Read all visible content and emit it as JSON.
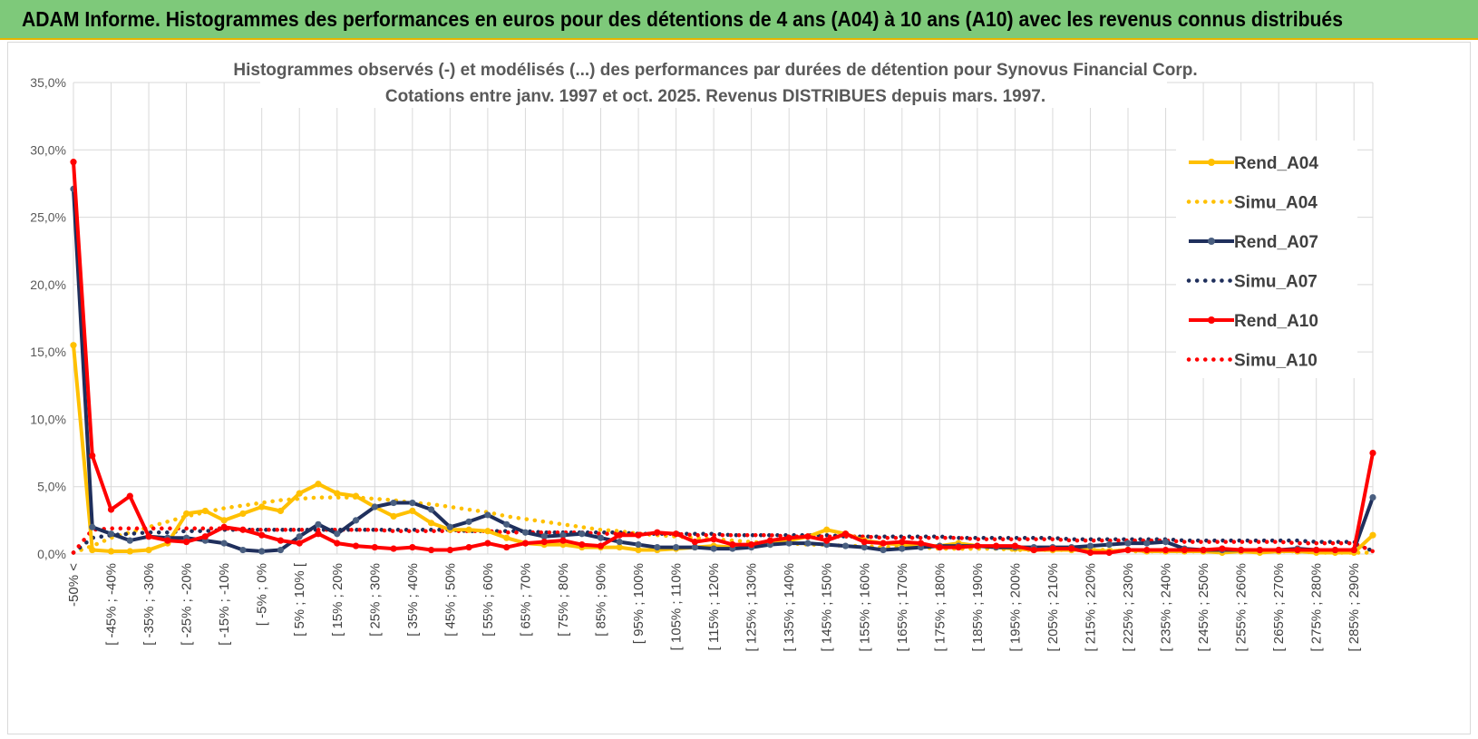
{
  "banner": {
    "title": "ADAM Informe. Histogrammes des performances en euros pour des détentions de 4 ans (A04) à 10 ans (A10) avec les revenus connus distribués"
  },
  "colors": {
    "banner_bg": "#7ec97a",
    "banner_border": "#e8b400",
    "A04": "#ffc000",
    "A07": "#1f2f5c",
    "A07_marker": "#4a5f80",
    "A10": "#ff0000",
    "grid": "#d9d9d9"
  },
  "chart_data": {
    "type": "line",
    "title_lines": [
      "Histogrammes observés (-) et modélisés (...) des performances par durées de détention pour Synovus Financial Corp.",
      "Cotations entre janv. 1997 et oct. 2025. Revenus DISTRIBUES depuis mars. 1997."
    ],
    "grid": true,
    "legend_position": "right",
    "y_ticks": [
      "0,0%",
      "5,0%",
      "10,0%",
      "15,0%",
      "20,0%",
      "25,0%",
      "30,0%",
      "35,0%"
    ],
    "ylim": [
      0,
      35
    ],
    "x_labels": [
      "-50% <",
      "[ -45% ; -40%",
      "[ -35% ; -30%",
      "[ -25% ; -20%",
      "[ -15% ; -10%",
      "[ -5% ; 0%",
      "[ 5% ; 10% [",
      "[ 15% ; 20%",
      "[ 25% ; 30%",
      "[ 35% ; 40%",
      "[ 45% ; 50%",
      "[ 55% ; 60%",
      "[ 65% ; 70%",
      "[ 75% ; 80%",
      "[ 85% ; 90%",
      "[ 95% ; 100%",
      "[ 105% ; 110%",
      "[ 115% ; 120%",
      "[ 125% ; 130%",
      "[ 135% ; 140%",
      "[ 145% ; 150%",
      "[ 155% ; 160%",
      "[ 165% ; 170%",
      "[ 175% ; 180%",
      "[ 185% ; 190%",
      "[ 195% ; 200%",
      "[ 205% ; 210%",
      "[ 215% ; 220%",
      "[ 225% ; 230%",
      "[ 235% ; 240%",
      "[ 245% ; 250%",
      "[ 255% ; 260%",
      "[ 265% ; 270%",
      "[ 275% ; 280%",
      "[ 285% ; 290%"
    ],
    "series": [
      {
        "name": "Rend_A04",
        "style": "solid",
        "color": "#ffc000",
        "values": [
          15.5,
          0.3,
          0.2,
          0.2,
          0.3,
          0.8,
          3.0,
          3.2,
          2.5,
          3.0,
          3.5,
          3.2,
          4.5,
          5.2,
          4.5,
          4.3,
          3.5,
          2.8,
          3.2,
          2.3,
          1.8,
          1.8,
          1.7,
          1.2,
          0.8,
          0.7,
          0.7,
          0.5,
          0.5,
          0.5,
          0.3,
          0.3,
          0.4,
          0.5,
          0.6,
          0.5,
          0.6,
          0.7,
          1.0,
          1.3,
          1.8,
          1.5,
          1.0,
          0.8,
          0.7,
          0.6,
          0.6,
          0.8,
          0.6,
          0.5,
          0.4,
          0.3,
          0.3,
          0.3,
          0.3,
          0.2,
          0.3,
          0.2,
          0.2,
          0.2,
          0.2,
          0.1,
          0.2,
          0.1,
          0.2,
          0.2,
          0.1,
          0.1,
          0.1,
          1.4
        ]
      },
      {
        "name": "Simu_A04",
        "style": "dotted",
        "color": "#ffc000",
        "values": [
          0.1,
          0.6,
          1.2,
          1.6,
          2.0,
          2.4,
          2.8,
          3.1,
          3.4,
          3.6,
          3.8,
          4.0,
          4.1,
          4.2,
          4.2,
          4.2,
          4.1,
          4.0,
          3.8,
          3.7,
          3.5,
          3.3,
          3.1,
          2.8,
          2.6,
          2.4,
          2.2,
          2.0,
          1.8,
          1.7,
          1.5,
          1.4,
          1.3,
          1.2,
          1.1,
          1.0,
          0.9,
          0.8,
          0.8,
          0.7,
          0.7,
          0.6,
          0.6,
          0.5,
          0.5,
          0.5,
          0.4,
          0.4,
          0.4,
          0.4,
          0.3,
          0.3,
          0.3,
          0.3,
          0.3,
          0.3,
          0.2,
          0.2,
          0.2,
          0.2,
          0.2,
          0.2,
          0.2,
          0.2,
          0.2,
          0.2,
          0.1,
          0.1,
          0.1,
          0.1
        ]
      },
      {
        "name": "Rend_A07",
        "style": "solid",
        "color": "#1f2f5c",
        "values": [
          27.1,
          2.0,
          1.5,
          1.0,
          1.3,
          1.2,
          1.2,
          1.0,
          0.8,
          0.3,
          0.2,
          0.3,
          1.3,
          2.2,
          1.5,
          2.5,
          3.5,
          3.8,
          3.8,
          3.3,
          2.0,
          2.4,
          2.9,
          2.2,
          1.6,
          1.3,
          1.4,
          1.5,
          1.2,
          0.9,
          0.7,
          0.5,
          0.5,
          0.5,
          0.4,
          0.4,
          0.5,
          0.7,
          0.8,
          0.8,
          0.7,
          0.6,
          0.5,
          0.3,
          0.4,
          0.5,
          0.6,
          0.6,
          0.6,
          0.5,
          0.5,
          0.5,
          0.5,
          0.5,
          0.6,
          0.7,
          0.8,
          0.8,
          0.9,
          0.4,
          0.3,
          0.3,
          0.3,
          0.3,
          0.3,
          0.4,
          0.3,
          0.3,
          0.3,
          4.2
        ]
      },
      {
        "name": "Simu_A07",
        "style": "dotted",
        "color": "#1f2f5c",
        "values": [
          0.1,
          1.2,
          1.4,
          1.5,
          1.6,
          1.6,
          1.7,
          1.7,
          1.8,
          1.8,
          1.8,
          1.8,
          1.8,
          1.8,
          1.8,
          1.8,
          1.8,
          1.8,
          1.8,
          1.8,
          1.8,
          1.7,
          1.7,
          1.7,
          1.7,
          1.6,
          1.6,
          1.6,
          1.6,
          1.6,
          1.5,
          1.5,
          1.5,
          1.5,
          1.5,
          1.4,
          1.4,
          1.4,
          1.4,
          1.4,
          1.4,
          1.3,
          1.3,
          1.3,
          1.3,
          1.3,
          1.3,
          1.2,
          1.2,
          1.2,
          1.2,
          1.2,
          1.2,
          1.1,
          1.1,
          1.1,
          1.1,
          1.1,
          1.1,
          1.0,
          1.0,
          1.0,
          1.0,
          1.0,
          1.0,
          1.0,
          0.9,
          0.9,
          0.9,
          0.2
        ]
      },
      {
        "name": "Rend_A10",
        "style": "solid",
        "color": "#ff0000",
        "values": [
          29.1,
          7.3,
          3.3,
          4.3,
          1.3,
          1.0,
          0.9,
          1.3,
          2.0,
          1.8,
          1.4,
          1.0,
          0.8,
          1.5,
          0.8,
          0.6,
          0.5,
          0.4,
          0.5,
          0.3,
          0.3,
          0.5,
          0.8,
          0.5,
          0.8,
          0.9,
          1.0,
          0.7,
          0.6,
          1.4,
          1.4,
          1.6,
          1.5,
          0.9,
          1.1,
          0.7,
          0.7,
          1.0,
          1.2,
          1.3,
          1.0,
          1.5,
          0.9,
          0.8,
          0.9,
          0.8,
          0.5,
          0.5,
          0.6,
          0.6,
          0.6,
          0.3,
          0.4,
          0.4,
          0.1,
          0.1,
          0.3,
          0.3,
          0.3,
          0.3,
          0.3,
          0.4,
          0.3,
          0.3,
          0.3,
          0.3,
          0.3,
          0.3,
          0.3,
          7.5
        ]
      },
      {
        "name": "Simu_A10",
        "style": "dotted",
        "color": "#ff0000",
        "values": [
          0.1,
          1.8,
          1.9,
          1.9,
          1.9,
          1.9,
          1.9,
          1.9,
          1.9,
          1.8,
          1.8,
          1.8,
          1.8,
          1.8,
          1.8,
          1.8,
          1.8,
          1.7,
          1.7,
          1.7,
          1.7,
          1.7,
          1.7,
          1.6,
          1.6,
          1.6,
          1.6,
          1.6,
          1.5,
          1.5,
          1.5,
          1.5,
          1.5,
          1.4,
          1.4,
          1.4,
          1.4,
          1.4,
          1.3,
          1.3,
          1.3,
          1.3,
          1.3,
          1.2,
          1.2,
          1.2,
          1.2,
          1.2,
          1.1,
          1.1,
          1.1,
          1.1,
          1.1,
          1.0,
          1.0,
          1.0,
          1.0,
          1.0,
          1.0,
          0.9,
          0.9,
          0.9,
          0.9,
          0.9,
          0.9,
          0.8,
          0.8,
          0.8,
          0.8,
          0.2
        ]
      }
    ]
  }
}
